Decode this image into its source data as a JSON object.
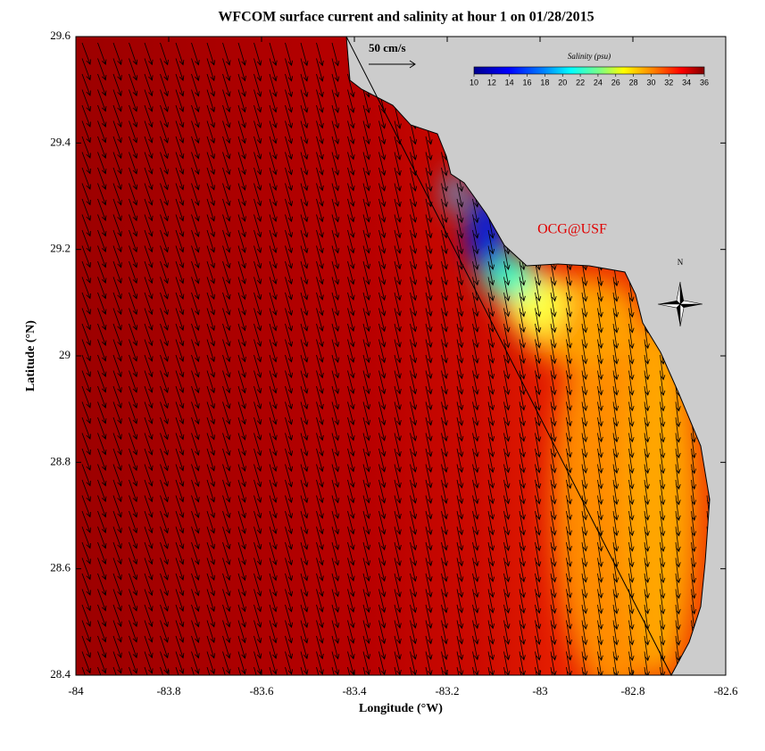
{
  "header": {
    "title": "WFCOM surface current and salinity at hour 1 on 01/28/2015"
  },
  "map": {
    "xlabel": "Longitude (°W)",
    "ylabel": "Latitude (°N)",
    "xlim": [
      -84,
      -82.6
    ],
    "ylim": [
      28.4,
      29.6
    ],
    "xticks": [
      -84,
      -83.8,
      -83.6,
      -83.4,
      -83.2,
      -83,
      -82.8,
      -82.6
    ],
    "yticks": [
      28.4,
      28.6,
      28.8,
      29,
      29.2,
      29.4,
      29.6
    ],
    "scale_label": "50 cm/s",
    "watermark": "OCG@USF",
    "north_label": "N"
  },
  "colorbar": {
    "label": "Salinity (psu)",
    "lim": [
      10,
      36
    ],
    "ticks": [
      10,
      12,
      14,
      16,
      18,
      20,
      22,
      24,
      26,
      28,
      30,
      32,
      34,
      36
    ]
  }
}
